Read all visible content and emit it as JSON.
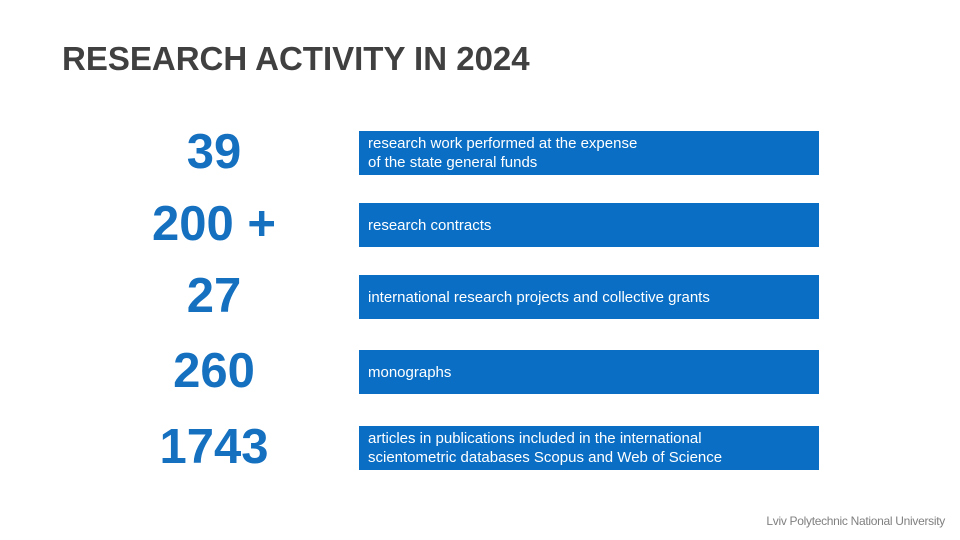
{
  "title": "RESEARCH ACTIVITY IN 2024",
  "items": [
    {
      "number": "39",
      "description": [
        "research work performed at the expense",
        "of the state general funds"
      ]
    },
    {
      "number": "200 +",
      "description": [
        "research contracts"
      ]
    },
    {
      "number": "27",
      "description": [
        "international research projects and collective grants"
      ]
    },
    {
      "number": "260",
      "description": [
        "monographs"
      ]
    },
    {
      "number": "1743",
      "description": [
        "articles in publications included in the international",
        "scientometric databases Scopus and Web of Science"
      ]
    }
  ],
  "footer": "Lviv Polytechnic National University"
}
